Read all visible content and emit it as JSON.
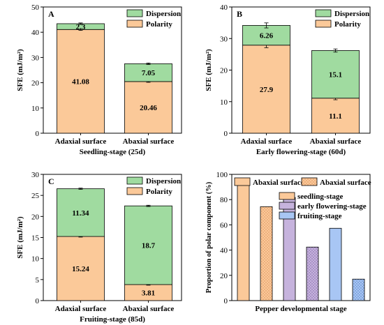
{
  "chart_data": [
    {
      "panel": "A",
      "type": "bar",
      "stacked": true,
      "xlabel": "Seedling-stage (25d)",
      "ylabel": "SFE (mJ/m²)",
      "ylim": [
        0,
        50
      ],
      "yticks": [
        0,
        10,
        20,
        30,
        40,
        50
      ],
      "categories": [
        "Adaxial surface",
        "Abaxial surface"
      ],
      "series": [
        {
          "name": "Polarity",
          "values": [
            41.08,
            20.46
          ],
          "labels": [
            "41.08",
            "20.46"
          ],
          "error": [
            0.35,
            0.3
          ]
        },
        {
          "name": "Dispersion",
          "values": [
            2.3,
            7.05
          ],
          "labels": [
            "2.3",
            "7.05"
          ],
          "error": [
            0.3,
            0.3
          ]
        }
      ],
      "legend_position": "top-right"
    },
    {
      "panel": "B",
      "type": "bar",
      "stacked": true,
      "xlabel": "Early flowering-stage (60d)",
      "ylabel": "SFE (mJ/m²)",
      "ylim": [
        0,
        40
      ],
      "yticks": [
        0,
        10,
        20,
        30,
        40
      ],
      "categories": [
        "Adaxial surface",
        "Abaxial surface"
      ],
      "series": [
        {
          "name": "Polarity",
          "values": [
            27.9,
            11.1
          ],
          "labels": [
            "27.9",
            "11.1"
          ],
          "error": [
            0.8,
            0.5
          ]
        },
        {
          "name": "Dispersion",
          "values": [
            6.26,
            15.1
          ],
          "labels": [
            "6.26",
            "15.1"
          ],
          "error": [
            0.8,
            0.5
          ]
        }
      ],
      "legend_position": "top-right"
    },
    {
      "panel": "C",
      "type": "bar",
      "stacked": true,
      "xlabel": "Fruiting-stage (85d)",
      "ylabel": "SFE (mJ/m²)",
      "ylim": [
        0,
        30
      ],
      "yticks": [
        0,
        5,
        10,
        15,
        20,
        25,
        30
      ],
      "categories": [
        "Adaxial surface",
        "Abaxial surface"
      ],
      "series": [
        {
          "name": "Polarity",
          "values": [
            15.24,
            3.81
          ],
          "labels": [
            "15.24",
            "3.81"
          ],
          "error": [
            0.15,
            0.15
          ]
        },
        {
          "name": "Dispersion",
          "values": [
            11.34,
            18.7
          ],
          "labels": [
            "11.34",
            "18.7"
          ],
          "error": [
            0.15,
            0.15
          ]
        }
      ],
      "legend_position": "top-right"
    },
    {
      "panel": "D",
      "type": "bar",
      "xlabel": "Pepper developmental stage",
      "ylabel": "Proportion of polar component (%)",
      "ylim": [
        0,
        100
      ],
      "yticks": [
        0,
        20,
        40,
        60,
        80,
        100
      ],
      "values": [
        94.7,
        74.4,
        81.7,
        42.4,
        57.3,
        17.0
      ],
      "bar_stage": [
        "seedling",
        "seedling",
        "early",
        "early",
        "fruiting",
        "fruiting"
      ],
      "bar_surface": [
        "adaxial",
        "abaxial",
        "adaxial",
        "abaxial",
        "adaxial",
        "abaxial"
      ],
      "legend_surface": [
        {
          "label": "Abaxial surface",
          "pattern": "solid"
        },
        {
          "label": "Abaxial surface",
          "pattern": "dotted"
        }
      ],
      "legend_stage": [
        {
          "label": "seedling-stage",
          "key": "seedling"
        },
        {
          "label": "early flowering-stage",
          "key": "early"
        },
        {
          "label": "fruiting-stage",
          "key": "fruiting"
        }
      ]
    }
  ],
  "colors": {
    "polarity": "#fbc999",
    "dispersion": "#a0dba0",
    "seedling": "#fbc999",
    "early": "#c6b3dd",
    "fruiting": "#a8c6f4",
    "frame": "#000000"
  }
}
